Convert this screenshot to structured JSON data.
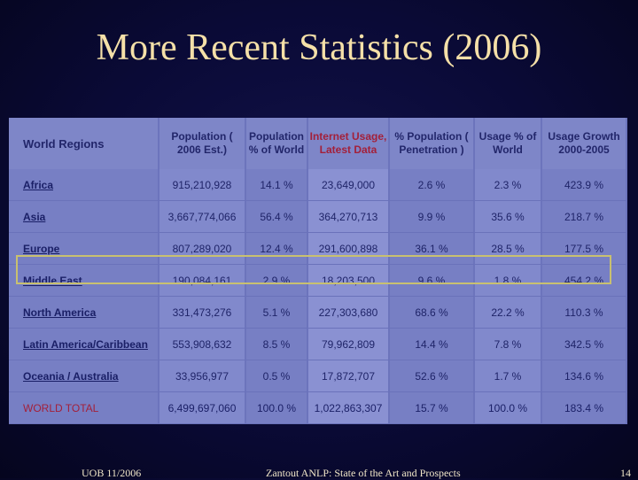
{
  "slide": {
    "title": "More Recent Statistics (2006)",
    "footer_left": "UOB 11/2006",
    "footer_center": "Zantout    ANLP: State of the Art and Prospects",
    "footer_right": "14"
  },
  "table": {
    "headers": [
      "World Regions",
      "Population ( 2006 Est.)",
      "Population % of World",
      "Internet Usage, Latest Data",
      "% Population ( Penetration )",
      "Usage % of World",
      "Usage Growth 2000-2005"
    ],
    "rows": [
      {
        "region": "Africa",
        "population": "915,210,928",
        "pop_pct": "14.1 %",
        "usage": "23,649,000",
        "penetration": "2.6 %",
        "usage_pct": "2.3 %",
        "growth": "423.9 %"
      },
      {
        "region": "Asia",
        "population": "3,667,774,066",
        "pop_pct": "56.4 %",
        "usage": "364,270,713",
        "penetration": "9.9 %",
        "usage_pct": "35.6 %",
        "growth": "218.7 %"
      },
      {
        "region": "Europe",
        "population": "807,289,020",
        "pop_pct": "12.4 %",
        "usage": "291,600,898",
        "penetration": "36.1 %",
        "usage_pct": "28.5 %",
        "growth": "177.5 %"
      },
      {
        "region": "Middle East",
        "population": "190,084,161",
        "pop_pct": "2.9 %",
        "usage": "18,203,500",
        "penetration": "9.6 %",
        "usage_pct": "1.8 %",
        "growth": "454.2 %"
      },
      {
        "region": "North America",
        "population": "331,473,276",
        "pop_pct": "5.1 %",
        "usage": "227,303,680",
        "penetration": "68.6 %",
        "usage_pct": "22.2 %",
        "growth": "110.3 %"
      },
      {
        "region": "Latin America/Caribbean",
        "population": "553,908,632",
        "pop_pct": "8.5 %",
        "usage": "79,962,809",
        "penetration": "14.4 %",
        "usage_pct": "7.8 %",
        "growth": "342.5 %"
      },
      {
        "region": "Oceania / Australia",
        "population": "33,956,977",
        "pop_pct": "0.5 %",
        "usage": "17,872,707",
        "penetration": "52.6 %",
        "usage_pct": "1.7 %",
        "growth": "134.6 %"
      },
      {
        "region": "WORLD TOTAL",
        "population": "6,499,697,060",
        "pop_pct": "100.0 %",
        "usage": "1,022,863,307",
        "penetration": "15.7 %",
        "usage_pct": "100.0 %",
        "growth": "183.4 %"
      }
    ],
    "highlighted_row": "Middle East"
  },
  "colors": {
    "background": "#0a0a36",
    "title": "#f5e0a8",
    "table_bg": "#7178c0",
    "header_text": "#22266a",
    "highlight_text": "#a3203a",
    "highlight_border": "#c8c070",
    "footer_text": "#f0e6c8"
  }
}
